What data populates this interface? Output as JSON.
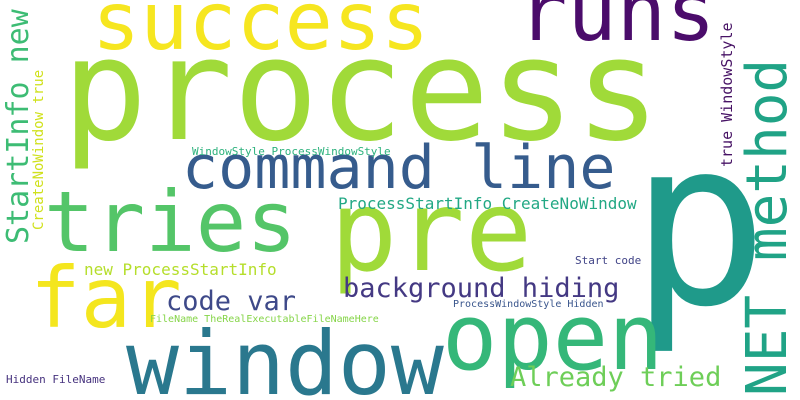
{
  "words": [
    {
      "text": "process",
      "color": "#a0da39"
    },
    {
      "text": "p",
      "color": "#1f9a8a"
    },
    {
      "text": "success",
      "color": "#f6e620"
    },
    {
      "text": "runs",
      "color": "#4b0c6b"
    },
    {
      "text": "pre",
      "color": "#a0da39"
    },
    {
      "text": "window",
      "color": "#2a788e"
    },
    {
      "text": "open",
      "color": "#35b779"
    },
    {
      "text": "tries",
      "color": "#54c568"
    },
    {
      "text": "far",
      "color": "#f4e61e"
    },
    {
      "text": "command line",
      "color": "#365c8d"
    },
    {
      "text": "NET method",
      "color": "#20a386"
    },
    {
      "text": "StartInfo new",
      "color": "#3dbc74"
    },
    {
      "text": "background hiding",
      "color": "#443983"
    },
    {
      "text": "code var",
      "color": "#3e4989"
    },
    {
      "text": "Already tried",
      "color": "#6ece58"
    },
    {
      "text": "new ProcessStartInfo",
      "color": "#b5de2b"
    },
    {
      "text": "ProcessStartInfo CreateNoWindow",
      "color": "#22a884"
    },
    {
      "text": "true WindowStyle",
      "color": "#471365"
    },
    {
      "text": "CreateNoWindow true",
      "color": "#d0e11c"
    },
    {
      "text": "WindowStyle ProcessWindowStyle",
      "color": "#2db27d"
    },
    {
      "text": "Start code",
      "color": "#414487"
    },
    {
      "text": "ProcessWindowStyle Hidden",
      "color": "#39558c"
    },
    {
      "text": "FileName TheRealExecutableFileNameHere",
      "color": "#86d549"
    },
    {
      "text": "Hidden FileName",
      "color": "#46327e"
    }
  ]
}
